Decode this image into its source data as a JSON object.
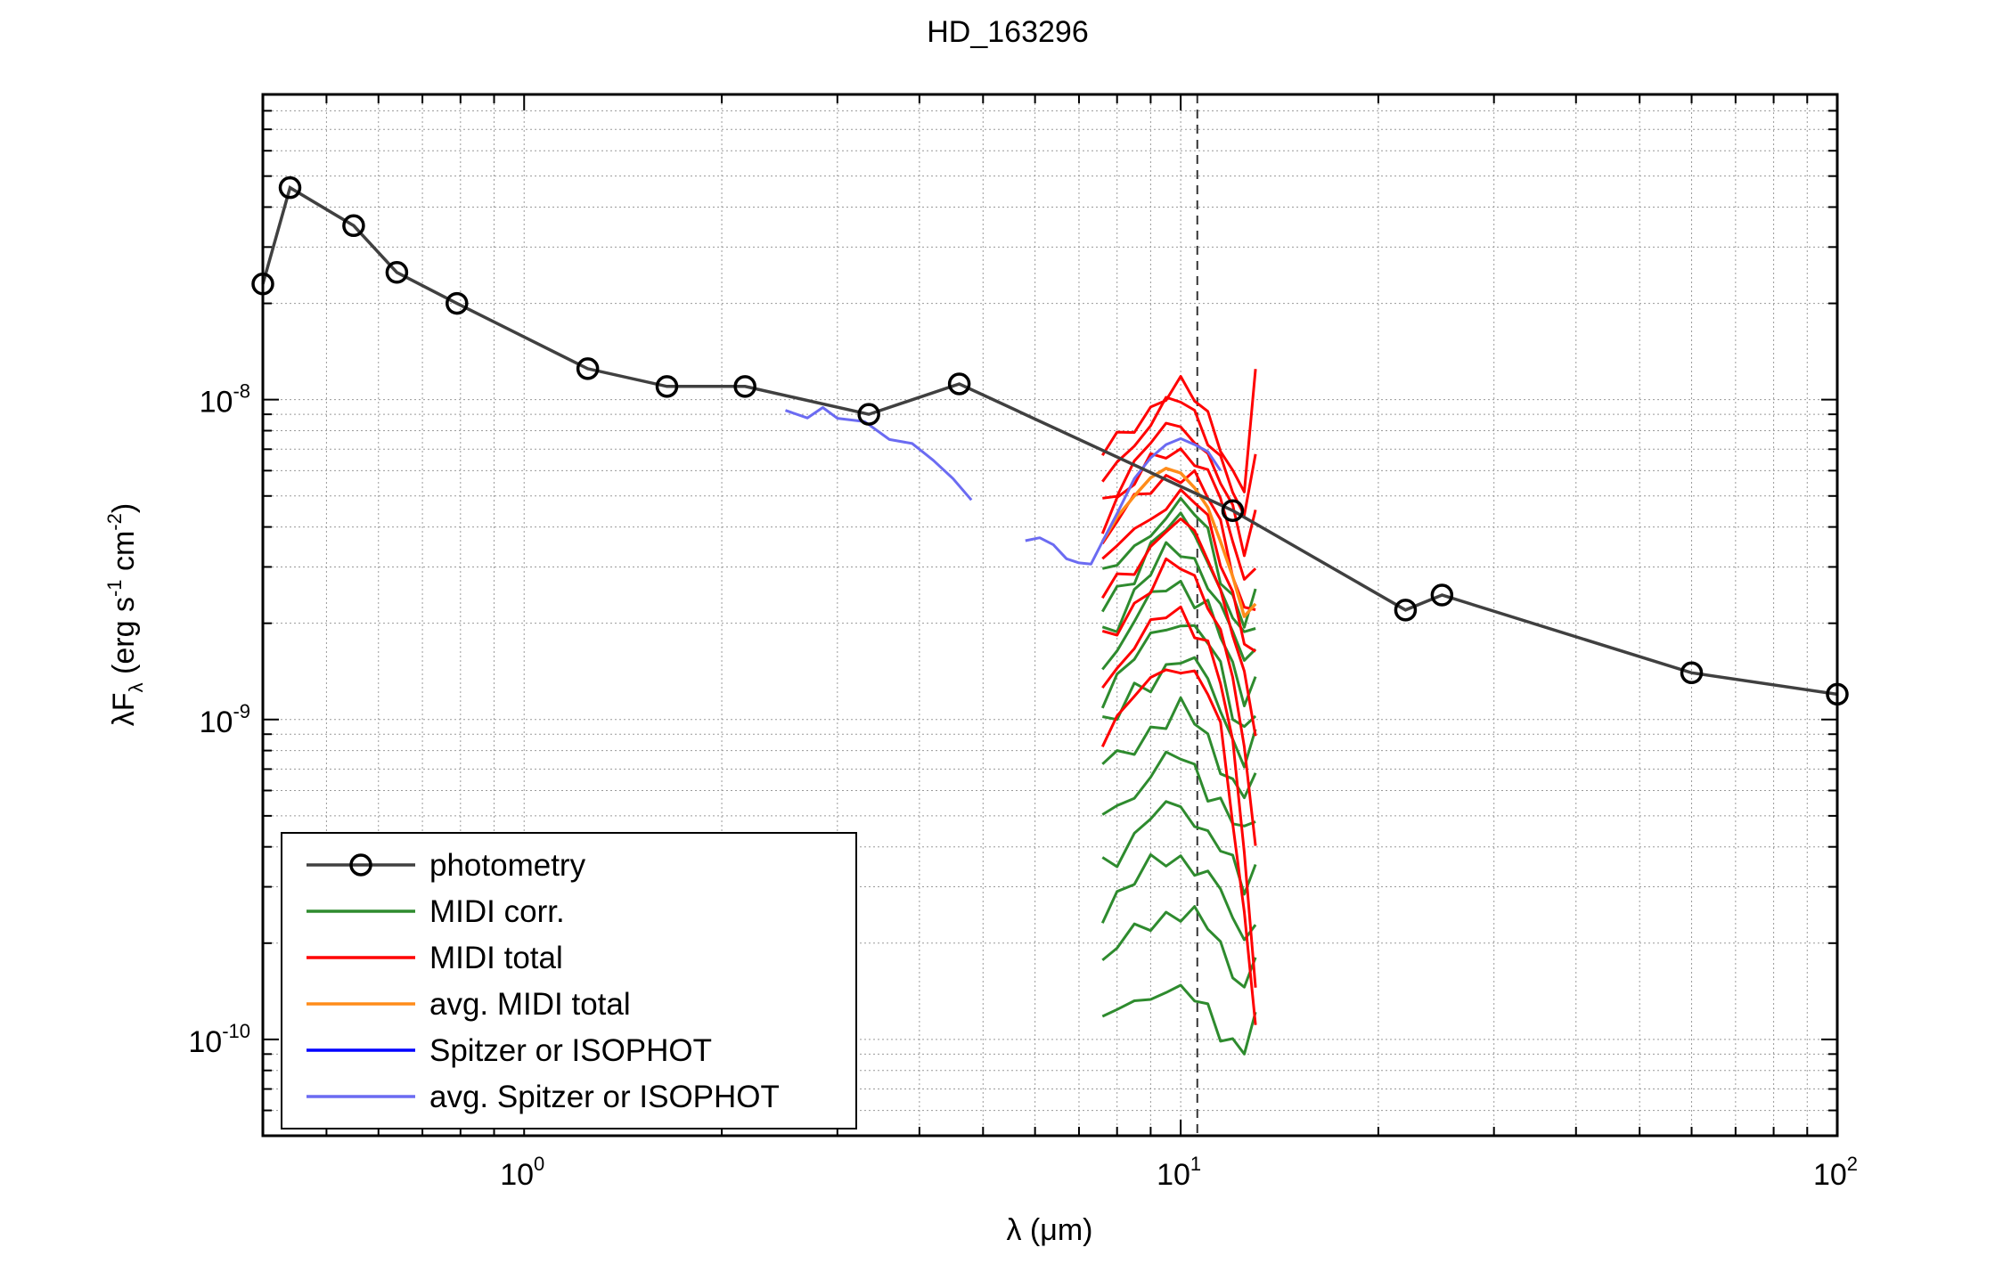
{
  "chart_data": {
    "type": "line",
    "title": "HD_163296",
    "xlabel": {
      "prefix": "λ (",
      "mu": "μ",
      "suffix": "m)"
    },
    "ylabel": {
      "main": "λF",
      "sub": "λ",
      "units_a": " (erg s",
      "sup1": "-1",
      "units_b": " cm",
      "sup2": "-2",
      "units_c": ")"
    },
    "x_scale": "log",
    "y_scale": "log",
    "xlim": [
      0.4,
      100
    ],
    "ylim": [
      5e-11,
      9e-08
    ],
    "grid": true,
    "x_ticks": [
      {
        "value": 1,
        "base": "10",
        "exp": "0"
      },
      {
        "value": 10,
        "base": "10",
        "exp": "1"
      },
      {
        "value": 100,
        "base": "10",
        "exp": "2"
      }
    ],
    "y_ticks": [
      {
        "value": 1e-10,
        "base": "10",
        "exp": "-10"
      },
      {
        "value": 1e-09,
        "base": "10",
        "exp": "-9"
      },
      {
        "value": 1e-08,
        "base": "10",
        "exp": "-8"
      }
    ],
    "vline": {
      "x": 10.6,
      "style": "dashed",
      "color": "#333333"
    },
    "legend_position": "bottom-left",
    "series": [
      {
        "name": "photometry",
        "color": "#404040",
        "marker": "circle",
        "x": [
          0.4,
          0.44,
          0.55,
          0.64,
          0.79,
          1.25,
          1.65,
          2.17,
          3.35,
          4.6,
          12,
          22,
          25,
          60,
          100
        ],
        "y": [
          2.3e-08,
          4.6e-08,
          3.5e-08,
          2.5e-08,
          2e-08,
          1.25e-08,
          1.1e-08,
          1.1e-08,
          9e-09,
          1.12e-08,
          4.5e-09,
          2.2e-09,
          2.45e-09,
          1.4e-09,
          1.2e-09
        ]
      },
      {
        "name": "MIDI corr.",
        "color": "#2e8b2e",
        "x": [
          7.6,
          8.0,
          8.5,
          9.0,
          9.5,
          10.0,
          10.5,
          11.0,
          11.5,
          12.0,
          12.5,
          13.0
        ],
        "profiles": [
          [
            2.7e-09,
            3e-09,
            3.5e-09,
            4e-09,
            4.4e-09,
            4.6e-09,
            4.3e-09,
            3.8e-09,
            3e-09,
            2.4e-09,
            2e-09,
            2.3e-09
          ],
          [
            2.2e-09,
            2.5e-09,
            3e-09,
            3.5e-09,
            3.9e-09,
            4.1e-09,
            3.8e-09,
            3.3e-09,
            2.6e-09,
            2.1e-09,
            1.7e-09,
            2e-09
          ],
          [
            1.9e-09,
            2.1e-09,
            2.5e-09,
            2.9e-09,
            3.2e-09,
            3.4e-09,
            3.2e-09,
            2.8e-09,
            2.2e-09,
            1.8e-09,
            1.5e-09,
            1.7e-09
          ],
          [
            1.5e-09,
            1.7e-09,
            2e-09,
            2.3e-09,
            2.6e-09,
            2.7e-09,
            2.5e-09,
            2.2e-09,
            1.8e-09,
            1.4e-09,
            1.2e-09,
            1.4e-09
          ],
          [
            1.2e-09,
            1.3e-09,
            1.5e-09,
            1.8e-09,
            2e-09,
            2.1e-09,
            1.9e-09,
            1.7e-09,
            1.4e-09,
            1.1e-09,
            9.5e-10,
            1.1e-09
          ],
          [
            9.5e-10,
            1e-09,
            1.2e-09,
            1.35e-09,
            1.5e-09,
            1.55e-09,
            1.45e-09,
            1.3e-09,
            1.1e-09,
            9e-10,
            7.5e-10,
            8.5e-10
          ],
          [
            7e-10,
            7.5e-10,
            8.5e-10,
            9.5e-10,
            1e-09,
            1.05e-09,
            9.8e-10,
            8.8e-10,
            7.5e-10,
            6.5e-10,
            5.5e-10,
            6.5e-10
          ],
          [
            5e-10,
            5.5e-10,
            6e-10,
            6.8e-10,
            7.3e-10,
            7.5e-10,
            7e-10,
            6.3e-10,
            5.5e-10,
            4.8e-10,
            4.2e-10,
            5e-10
          ],
          [
            3.6e-10,
            3.9e-10,
            4.3e-10,
            4.8e-10,
            5.2e-10,
            5.4e-10,
            5e-10,
            4.5e-10,
            3.9e-10,
            3.4e-10,
            3e-10,
            3.5e-10
          ],
          [
            2.6e-10,
            2.8e-10,
            3.1e-10,
            3.4e-10,
            3.7e-10,
            3.8e-10,
            3.5e-10,
            3.2e-10,
            2.8e-10,
            2.4e-10,
            2.1e-10,
            2.5e-10
          ],
          [
            1.8e-10,
            1.9e-10,
            2.1e-10,
            2.3e-10,
            2.5e-10,
            2.6e-10,
            2.4e-10,
            2.2e-10,
            1.9e-10,
            1.7e-10,
            1.5e-10,
            1.8e-10
          ],
          [
            1.1e-10,
            1.2e-10,
            1.3e-10,
            1.4e-10,
            1.5e-10,
            1.4e-10,
            1.3e-10,
            1.2e-10,
            1.1e-10,
            1e-10,
            9.5e-11,
            1.1e-10
          ]
        ]
      },
      {
        "name": "MIDI total",
        "color": "#ff0000",
        "x": [
          7.6,
          8.0,
          8.5,
          9.0,
          9.5,
          10.0,
          10.5,
          11.0,
          11.5,
          12.0,
          12.5,
          13.0
        ],
        "profiles": [
          [
            6.5e-09,
            7.5e-09,
            8.5e-09,
            9.5e-09,
            1.05e-08,
            1.08e-08,
            1e-08,
            9e-09,
            7.5e-09,
            6e-09,
            5e-09,
            1.2e-08
          ],
          [
            5.5e-09,
            6.5e-09,
            7.5e-09,
            8.5e-09,
            9.5e-09,
            9.8e-09,
            9e-09,
            8e-09,
            6.5e-09,
            5.2e-09,
            4e-09,
            7e-09
          ],
          [
            4.8e-09,
            5.5e-09,
            6.3e-09,
            7.2e-09,
            8e-09,
            8.3e-09,
            7.8e-09,
            6.8e-09,
            5.5e-09,
            4.3e-09,
            3.4e-09,
            4.5e-09
          ],
          [
            4.2e-09,
            4.8e-09,
            5.5e-09,
            6.2e-09,
            6.9e-09,
            7.1e-09,
            6.6e-09,
            5.8e-09,
            4.7e-09,
            3.6e-09,
            2.8e-09,
            3.2e-09
          ],
          [
            3.6e-09,
            4.1e-09,
            4.7e-09,
            5.3e-09,
            5.8e-09,
            6e-09,
            5.6e-09,
            4.9e-09,
            4e-09,
            3e-09,
            2.3e-09,
            2.2e-09
          ],
          [
            3e-09,
            3.4e-09,
            3.9e-09,
            4.4e-09,
            4.8e-09,
            5e-09,
            4.7e-09,
            4.1e-09,
            3.3e-09,
            2.5e-09,
            1.8e-09,
            1.5e-09
          ],
          [
            2.4e-09,
            2.7e-09,
            3.1e-09,
            3.5e-09,
            3.9e-09,
            4e-09,
            3.8e-09,
            3.3e-09,
            2.6e-09,
            1.9e-09,
            1.3e-09,
            9e-10
          ],
          [
            1.8e-09,
            2e-09,
            2.3e-09,
            2.6e-09,
            2.9e-09,
            3e-09,
            2.8e-09,
            2.4e-09,
            1.9e-09,
            1.3e-09,
            8e-10,
            4e-10
          ],
          [
            1.3e-09,
            1.5e-09,
            1.7e-09,
            1.9e-09,
            2.1e-09,
            2.2e-09,
            2e-09,
            1.7e-09,
            1.3e-09,
            8e-10,
            4e-10,
            1.5e-10
          ],
          [
            9e-10,
            1e-09,
            1.15e-09,
            1.3e-09,
            1.45e-09,
            1.5e-09,
            1.4e-09,
            1.2e-09,
            9e-10,
            5e-10,
            2.5e-10,
            1.2e-10
          ]
        ]
      },
      {
        "name": "avg. MIDI total",
        "color": "#ff8c1a",
        "x": [
          7.6,
          8.0,
          8.5,
          9.0,
          9.5,
          10.0,
          10.5,
          11.0,
          11.5,
          12.0,
          12.5,
          13.0
        ],
        "y": [
          3.6e-09,
          4.3e-09,
          5e-09,
          5.7e-09,
          6.1e-09,
          5.9e-09,
          5.3e-09,
          4.6e-09,
          3.6e-09,
          2.8e-09,
          2.1e-09,
          2.3e-09
        ]
      },
      {
        "name": "Spitzer or ISOPHOT",
        "color": "#0000ff",
        "x": [],
        "y": []
      },
      {
        "name": "avg. Spitzer or ISOPHOT",
        "color": "#6b6bf2",
        "segments": [
          {
            "x": [
              2.5,
              2.7,
              2.85,
              3.0,
              3.3,
              3.6,
              3.9,
              4.2,
              4.5,
              4.8
            ],
            "y": [
              9.2e-09,
              9e-09,
              9.4e-09,
              8.8e-09,
              8.3e-09,
              7.6e-09,
              7.3e-09,
              6.6e-09,
              5.6e-09,
              4.8e-09
            ]
          },
          {
            "x": [
              5.8,
              6.1,
              6.4,
              6.7,
              7.0,
              7.3,
              7.6,
              8.0,
              8.5,
              9.0,
              9.5,
              10.0,
              10.5,
              11.0,
              11.5
            ],
            "y": [
              3.6e-09,
              3.8e-09,
              3.5e-09,
              3.2e-09,
              3e-09,
              3.1e-09,
              3.6e-09,
              4.5e-09,
              5.6e-09,
              6.5e-09,
              7.2e-09,
              7.6e-09,
              7.4e-09,
              6.8e-09,
              6e-09
            ]
          }
        ]
      }
    ]
  }
}
